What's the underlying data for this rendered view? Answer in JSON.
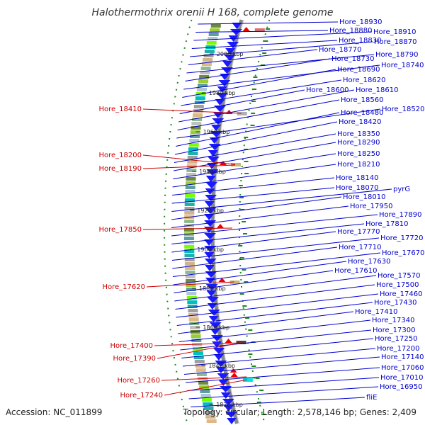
{
  "title": "Halothermothrix orenii H 168, complete genome",
  "footer": {
    "accession": "Accession: NC_011899",
    "summary": "Topology: circular; Length: 2,578,146 bp; Genes: 2,409"
  },
  "kbp_ticks": [
    "2000 kbp",
    "1980 kbp",
    "1960 kbp",
    "1940 kbp",
    "1920 kbp",
    "1900 kbp",
    "1880 kbp",
    "1860 kbp",
    "1840 kbp",
    "1820 kbp"
  ],
  "right_labels": [
    "Hore_18930",
    "Hore_18880",
    "Hore_18910",
    "Hore_18830",
    "Hore_18870",
    "Hore_18770",
    "Hore_18790",
    "Hore_18730",
    "Hore_18740",
    "Hore_18690",
    "Hore_18620",
    "Hore_18600",
    "Hore_18610",
    "Hore_18560",
    "Hore_18520",
    "Hore_18480",
    "Hore_18420",
    "Hore_18350",
    "Hore_18290",
    "Hore_18250",
    "Hore_18210",
    "Hore_18140",
    "Hore_18070",
    "pyrG",
    "Hore_18010",
    "Hore_17950",
    "Hore_17890",
    "Hore_17810",
    "Hore_17770",
    "Hore_17720",
    "Hore_17710",
    "Hore_17670",
    "Hore_17630",
    "Hore_17610",
    "Hore_17570",
    "Hore_17500",
    "Hore_17460",
    "Hore_17430",
    "Hore_17410",
    "Hore_17340",
    "Hore_17300",
    "Hore_17250",
    "Hore_17200",
    "Hore_17140",
    "Hore_17060",
    "Hore_17010",
    "Hore_16950",
    "fliE"
  ],
  "left_labels": [
    "Hore_18410",
    "Hore_18200",
    "Hore_18190",
    "Hore_17850",
    "Hore_17620",
    "Hore_17400",
    "Hore_17390",
    "Hore_17260",
    "Hore_17240"
  ],
  "colors": {
    "backbone": "#888888",
    "gene_arrow": "#1a1aff",
    "right_label": "#0000cc",
    "left_label": "#cc0000",
    "gc_skew": "#1a8a1a"
  }
}
